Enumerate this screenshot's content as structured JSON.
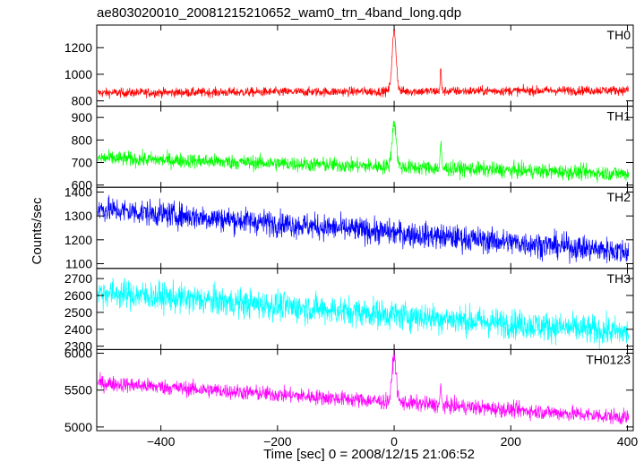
{
  "title": "ae803020010_20081215210652_wam0_trn_4band_long.qdp",
  "xlabel": "Time [sec] 0 = 2008/12/15 21:06:52",
  "ylabel": "Counts/sec",
  "chart_data": {
    "type": "line",
    "x_range": [
      -510,
      410
    ],
    "x_ticks": [
      -400,
      -200,
      0,
      200,
      400
    ],
    "x_tick_labels": [
      "−400",
      "−200",
      "0",
      "200",
      "400"
    ],
    "panels": [
      {
        "name": "TH0",
        "color": "#ff0000",
        "ylim": [
          760,
          1370
        ],
        "y_ticks": [
          800,
          1000,
          1200
        ],
        "trend": [
          [
            -510,
            860
          ],
          [
            400,
            880
          ]
        ],
        "noise": 25,
        "spikes": [
          [
            0,
            1320,
            5
          ],
          [
            80,
            1040,
            1.5
          ]
        ]
      },
      {
        "name": "TH1",
        "color": "#00ff00",
        "ylim": [
          590,
          950
        ],
        "y_ticks": [
          600,
          700,
          800,
          900
        ],
        "trend": [
          [
            -510,
            720
          ],
          [
            400,
            650
          ]
        ],
        "noise": 24,
        "spikes": [
          [
            0,
            880,
            5
          ],
          [
            80,
            790,
            1.5
          ]
        ]
      },
      {
        "name": "TH2",
        "color": "#0000ff",
        "ylim": [
          1080,
          1420
        ],
        "y_ticks": [
          1100,
          1200,
          1300,
          1400
        ],
        "trend": [
          [
            -510,
            1330
          ],
          [
            400,
            1150
          ]
        ],
        "noise": 38,
        "spikes": []
      },
      {
        "name": "TH3",
        "color": "#00ffff",
        "ylim": [
          2280,
          2760
        ],
        "y_ticks": [
          2300,
          2400,
          2500,
          2600,
          2700
        ],
        "trend": [
          [
            -510,
            2620
          ],
          [
            400,
            2380
          ]
        ],
        "noise": 62,
        "spikes": []
      },
      {
        "name": "TH0123",
        "color": "#ff00ff",
        "ylim": [
          4950,
          6050
        ],
        "y_ticks": [
          5000,
          5500,
          6000
        ],
        "trend": [
          [
            -510,
            5600
          ],
          [
            400,
            5130
          ]
        ],
        "noise": 75,
        "spikes": [
          [
            0,
            5960,
            5
          ],
          [
            80,
            5550,
            1.5
          ]
        ]
      }
    ]
  }
}
